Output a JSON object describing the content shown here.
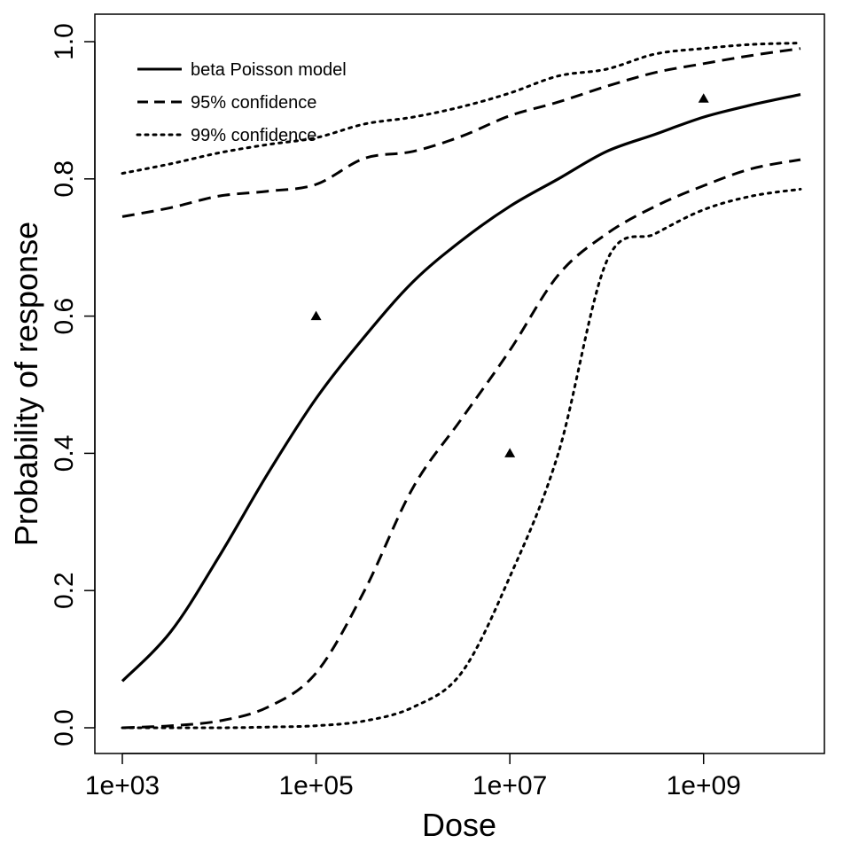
{
  "chart_data": {
    "type": "line",
    "xlabel": "Dose",
    "ylabel": "Probability of response",
    "x_scale": "log10",
    "xlim": [
      1000,
      10000000000
    ],
    "ylim": [
      0,
      1
    ],
    "x_ticks": [
      {
        "value": 1000,
        "label": "1e+03"
      },
      {
        "value": 100000,
        "label": "1e+05"
      },
      {
        "value": 10000000,
        "label": "1e+07"
      },
      {
        "value": 1000000000,
        "label": "1e+09"
      }
    ],
    "y_ticks": [
      {
        "value": 0.0,
        "label": "0.0"
      },
      {
        "value": 0.2,
        "label": "0.2"
      },
      {
        "value": 0.4,
        "label": "0.4"
      },
      {
        "value": 0.6,
        "label": "0.6"
      },
      {
        "value": 0.8,
        "label": "0.8"
      },
      {
        "value": 1.0,
        "label": "1.0"
      }
    ],
    "grid": false,
    "legend_position": "top-left",
    "series": [
      {
        "name": "beta Poisson model",
        "style": "solid",
        "x": [
          1000,
          3162,
          10000,
          31623,
          100000,
          316228,
          1000000,
          3162278,
          10000000,
          31622777,
          100000000,
          316227766,
          1000000000,
          3162277660,
          10000000000
        ],
        "y": [
          0.068,
          0.14,
          0.25,
          0.37,
          0.48,
          0.57,
          0.65,
          0.71,
          0.76,
          0.8,
          0.84,
          0.865,
          0.89,
          0.908,
          0.923
        ]
      },
      {
        "name": "95% confidence",
        "style": "dashed",
        "x": [
          1000,
          3162,
          10000,
          31623,
          100000,
          316228,
          1000000,
          3162278,
          10000000,
          31622777,
          100000000,
          316227766,
          1000000000,
          3162277660,
          10000000000
        ],
        "y": [
          0.745,
          0.758,
          0.775,
          0.782,
          0.792,
          0.83,
          0.84,
          0.862,
          0.892,
          0.912,
          0.935,
          0.955,
          0.968,
          0.98,
          0.99
        ]
      },
      {
        "name": "95% confidence",
        "style": "dashed",
        "x": [
          1000,
          3162,
          10000,
          31623,
          100000,
          316228,
          1000000,
          3162278,
          10000000,
          31622777,
          100000000,
          316227766,
          1000000000,
          3162277660,
          10000000000
        ],
        "y": [
          0.0,
          0.003,
          0.01,
          0.03,
          0.08,
          0.2,
          0.35,
          0.45,
          0.55,
          0.66,
          0.72,
          0.76,
          0.79,
          0.815,
          0.828
        ]
      },
      {
        "name": "99% confidence",
        "style": "dotted",
        "x": [
          1000,
          3162,
          10000,
          31623,
          100000,
          316228,
          1000000,
          3162278,
          10000000,
          31622777,
          100000000,
          316227766,
          1000000000,
          3162277660,
          10000000000
        ],
        "y": [
          0.808,
          0.822,
          0.838,
          0.85,
          0.86,
          0.88,
          0.89,
          0.905,
          0.925,
          0.95,
          0.96,
          0.982,
          0.99,
          0.996,
          0.998
        ]
      },
      {
        "name": "99% confidence",
        "style": "dotted",
        "x": [
          1000,
          3162,
          10000,
          31623,
          100000,
          316228,
          1000000,
          3162278,
          10000000,
          31622777,
          100000000,
          316227766,
          1000000000,
          3162277660,
          10000000000
        ],
        "y": [
          0.0,
          0.0,
          0.0,
          0.001,
          0.003,
          0.01,
          0.03,
          0.08,
          0.22,
          0.4,
          0.68,
          0.72,
          0.755,
          0.775,
          0.785
        ]
      }
    ],
    "points": {
      "marker": "triangle",
      "x": [
        100000,
        10000000,
        1000000000
      ],
      "y": [
        0.6,
        0.4,
        0.917
      ]
    },
    "legend": [
      {
        "label": "beta Poisson model",
        "style": "solid"
      },
      {
        "label": "95% confidence",
        "style": "dashed"
      },
      {
        "label": "99% confidence",
        "style": "dotted"
      }
    ]
  }
}
